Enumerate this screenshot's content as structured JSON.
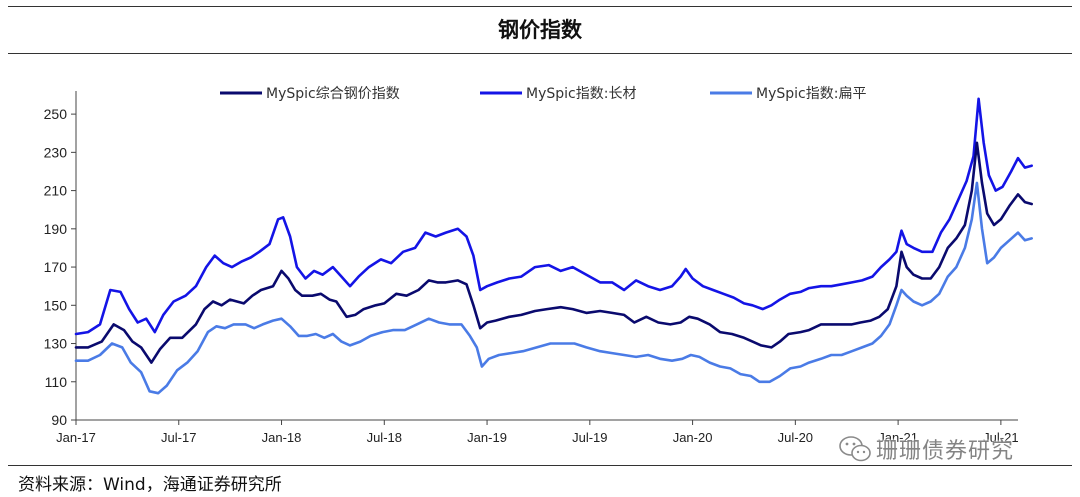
{
  "header": {
    "title": "钢价指数"
  },
  "footer": {
    "source": "资料来源：Wind，海通证券研究所"
  },
  "watermark": {
    "text": "珊珊债券研究",
    "icon": "wechat-icon"
  },
  "chart_data": {
    "type": "line",
    "title": "",
    "xlabel": "",
    "ylabel": "",
    "ylim": [
      90,
      260
    ],
    "yticks": [
      90,
      110,
      130,
      150,
      170,
      190,
      210,
      230,
      250
    ],
    "xlim": [
      0,
      55
    ],
    "xticks": [
      {
        "x": 0,
        "label": "Jan-17"
      },
      {
        "x": 6,
        "label": "Jul-17"
      },
      {
        "x": 12,
        "label": "Jan-18"
      },
      {
        "x": 18,
        "label": "Jul-18"
      },
      {
        "x": 24,
        "label": "Jan-19"
      },
      {
        "x": 30,
        "label": "Jul-19"
      },
      {
        "x": 36,
        "label": "Jan-20"
      },
      {
        "x": 42,
        "label": "Jul-20"
      },
      {
        "x": 48,
        "label": "Jan-21"
      },
      {
        "x": 54,
        "label": "Jul-21"
      }
    ],
    "grid": false,
    "legend_position": "top",
    "series": [
      {
        "name": "MySpic综合钢价指数",
        "color": "#0a0a6e",
        "points": [
          [
            0,
            128
          ],
          [
            0.7,
            128
          ],
          [
            1.5,
            131
          ],
          [
            2.2,
            140
          ],
          [
            2.8,
            137
          ],
          [
            3.3,
            131
          ],
          [
            3.8,
            128
          ],
          [
            4.4,
            120
          ],
          [
            4.9,
            127
          ],
          [
            5.5,
            133
          ],
          [
            6.2,
            133
          ],
          [
            7,
            140
          ],
          [
            7.5,
            148
          ],
          [
            8,
            152
          ],
          [
            8.5,
            150
          ],
          [
            9,
            153
          ],
          [
            9.8,
            151
          ],
          [
            10.3,
            155
          ],
          [
            10.8,
            158
          ],
          [
            11.5,
            160
          ],
          [
            12,
            168
          ],
          [
            12.4,
            164
          ],
          [
            12.8,
            158
          ],
          [
            13.2,
            155
          ],
          [
            13.8,
            155
          ],
          [
            14.3,
            156
          ],
          [
            14.8,
            153
          ],
          [
            15.2,
            152
          ],
          [
            15.8,
            144
          ],
          [
            16.3,
            145
          ],
          [
            16.8,
            148
          ],
          [
            17.5,
            150
          ],
          [
            18,
            151
          ],
          [
            18.7,
            156
          ],
          [
            19.3,
            155
          ],
          [
            20,
            158
          ],
          [
            20.6,
            163
          ],
          [
            21.1,
            162
          ],
          [
            21.6,
            162
          ],
          [
            22.3,
            163
          ],
          [
            22.8,
            161
          ],
          [
            23.2,
            150
          ],
          [
            23.6,
            138
          ],
          [
            24,
            141
          ],
          [
            24.5,
            142
          ],
          [
            25.3,
            144
          ],
          [
            26,
            145
          ],
          [
            26.8,
            147
          ],
          [
            27.5,
            148
          ],
          [
            28.3,
            149
          ],
          [
            29,
            148
          ],
          [
            29.8,
            146
          ],
          [
            30.6,
            147
          ],
          [
            31.3,
            146
          ],
          [
            32,
            145
          ],
          [
            32.6,
            141
          ],
          [
            33.3,
            144
          ],
          [
            34,
            141
          ],
          [
            34.7,
            140
          ],
          [
            35.3,
            141
          ],
          [
            35.8,
            144
          ],
          [
            36.3,
            143
          ],
          [
            37,
            140
          ],
          [
            37.6,
            136
          ],
          [
            38.3,
            135
          ],
          [
            39,
            133
          ],
          [
            39.5,
            131
          ],
          [
            40,
            129
          ],
          [
            40.6,
            128
          ],
          [
            41.1,
            131
          ],
          [
            41.6,
            135
          ],
          [
            42.3,
            136
          ],
          [
            42.8,
            137
          ],
          [
            43.5,
            140
          ],
          [
            44.1,
            140
          ],
          [
            44.7,
            140
          ],
          [
            45.3,
            140
          ],
          [
            45.8,
            141
          ],
          [
            46.4,
            142
          ],
          [
            46.9,
            144
          ],
          [
            47.4,
            148
          ],
          [
            47.9,
            160
          ],
          [
            48.2,
            178
          ],
          [
            48.5,
            170
          ],
          [
            48.9,
            166
          ],
          [
            49.4,
            164
          ],
          [
            49.9,
            164
          ],
          [
            50.4,
            170
          ],
          [
            50.9,
            180
          ],
          [
            51.4,
            185
          ],
          [
            51.9,
            192
          ],
          [
            52.3,
            210
          ],
          [
            52.6,
            235
          ],
          [
            52.9,
            214
          ],
          [
            53.2,
            198
          ],
          [
            53.6,
            192
          ],
          [
            54,
            195
          ],
          [
            54.5,
            202
          ],
          [
            55,
            208
          ],
          [
            55.4,
            204
          ],
          [
            55.8,
            203
          ]
        ]
      },
      {
        "name": "MySpic指数:长材",
        "color": "#1414e6",
        "points": [
          [
            0,
            135
          ],
          [
            0.7,
            136
          ],
          [
            1.4,
            140
          ],
          [
            2,
            158
          ],
          [
            2.6,
            157
          ],
          [
            3.1,
            148
          ],
          [
            3.6,
            141
          ],
          [
            4.1,
            143
          ],
          [
            4.6,
            136
          ],
          [
            5.1,
            145
          ],
          [
            5.7,
            152
          ],
          [
            6.4,
            155
          ],
          [
            7,
            160
          ],
          [
            7.6,
            170
          ],
          [
            8.1,
            176
          ],
          [
            8.6,
            172
          ],
          [
            9.1,
            170
          ],
          [
            9.7,
            173
          ],
          [
            10.2,
            175
          ],
          [
            10.7,
            178
          ],
          [
            11.3,
            182
          ],
          [
            11.8,
            195
          ],
          [
            12.1,
            196
          ],
          [
            12.5,
            186
          ],
          [
            12.9,
            170
          ],
          [
            13.4,
            164
          ],
          [
            13.9,
            168
          ],
          [
            14.4,
            166
          ],
          [
            15,
            170
          ],
          [
            15.5,
            165
          ],
          [
            16,
            160
          ],
          [
            16.5,
            165
          ],
          [
            17.1,
            170
          ],
          [
            17.8,
            174
          ],
          [
            18.4,
            172
          ],
          [
            19.1,
            178
          ],
          [
            19.8,
            180
          ],
          [
            20.4,
            188
          ],
          [
            21,
            186
          ],
          [
            21.6,
            188
          ],
          [
            22.3,
            190
          ],
          [
            22.8,
            186
          ],
          [
            23.2,
            176
          ],
          [
            23.6,
            158
          ],
          [
            24,
            160
          ],
          [
            24.6,
            162
          ],
          [
            25.3,
            164
          ],
          [
            26,
            165
          ],
          [
            26.8,
            170
          ],
          [
            27.6,
            171
          ],
          [
            28.3,
            168
          ],
          [
            29,
            170
          ],
          [
            29.8,
            166
          ],
          [
            30.6,
            162
          ],
          [
            31.3,
            162
          ],
          [
            32,
            158
          ],
          [
            32.7,
            163
          ],
          [
            33.4,
            160
          ],
          [
            34.1,
            158
          ],
          [
            34.8,
            160
          ],
          [
            35.3,
            165
          ],
          [
            35.6,
            169
          ],
          [
            36,
            164
          ],
          [
            36.6,
            160
          ],
          [
            37.2,
            158
          ],
          [
            37.8,
            156
          ],
          [
            38.4,
            154
          ],
          [
            39,
            151
          ],
          [
            39.5,
            150
          ],
          [
            40.1,
            148
          ],
          [
            40.6,
            150
          ],
          [
            41.1,
            153
          ],
          [
            41.7,
            156
          ],
          [
            42.3,
            157
          ],
          [
            42.8,
            159
          ],
          [
            43.5,
            160
          ],
          [
            44.1,
            160
          ],
          [
            44.7,
            161
          ],
          [
            45.3,
            162
          ],
          [
            45.9,
            163
          ],
          [
            46.5,
            165
          ],
          [
            47,
            170
          ],
          [
            47.5,
            174
          ],
          [
            47.9,
            178
          ],
          [
            48.2,
            189
          ],
          [
            48.5,
            182
          ],
          [
            48.9,
            180
          ],
          [
            49.4,
            178
          ],
          [
            50,
            178
          ],
          [
            50.5,
            188
          ],
          [
            51,
            195
          ],
          [
            51.5,
            205
          ],
          [
            52,
            215
          ],
          [
            52.4,
            228
          ],
          [
            52.7,
            258
          ],
          [
            53,
            235
          ],
          [
            53.3,
            218
          ],
          [
            53.7,
            210
          ],
          [
            54.1,
            212
          ],
          [
            54.6,
            220
          ],
          [
            55,
            227
          ],
          [
            55.4,
            222
          ],
          [
            55.8,
            223
          ]
        ]
      },
      {
        "name": "MySpic指数:扁平",
        "color": "#4a7be6",
        "points": [
          [
            0,
            121
          ],
          [
            0.7,
            121
          ],
          [
            1.4,
            124
          ],
          [
            2.1,
            130
          ],
          [
            2.7,
            128
          ],
          [
            3.2,
            120
          ],
          [
            3.8,
            115
          ],
          [
            4.3,
            105
          ],
          [
            4.8,
            104
          ],
          [
            5.3,
            108
          ],
          [
            5.9,
            116
          ],
          [
            6.5,
            120
          ],
          [
            7.1,
            126
          ],
          [
            7.7,
            136
          ],
          [
            8.2,
            139
          ],
          [
            8.7,
            138
          ],
          [
            9.2,
            140
          ],
          [
            9.9,
            140
          ],
          [
            10.4,
            138
          ],
          [
            10.9,
            140
          ],
          [
            11.5,
            142
          ],
          [
            12,
            143
          ],
          [
            12.5,
            139
          ],
          [
            13,
            134
          ],
          [
            13.5,
            134
          ],
          [
            14,
            135
          ],
          [
            14.5,
            133
          ],
          [
            15,
            135
          ],
          [
            15.5,
            131
          ],
          [
            16,
            129
          ],
          [
            16.6,
            131
          ],
          [
            17.2,
            134
          ],
          [
            17.9,
            136
          ],
          [
            18.5,
            137
          ],
          [
            19.2,
            137
          ],
          [
            19.9,
            140
          ],
          [
            20.6,
            143
          ],
          [
            21.2,
            141
          ],
          [
            21.8,
            140
          ],
          [
            22.5,
            140
          ],
          [
            23,
            134
          ],
          [
            23.4,
            128
          ],
          [
            23.7,
            118
          ],
          [
            24.1,
            122
          ],
          [
            24.7,
            124
          ],
          [
            25.4,
            125
          ],
          [
            26.1,
            126
          ],
          [
            26.9,
            128
          ],
          [
            27.7,
            130
          ],
          [
            28.4,
            130
          ],
          [
            29.1,
            130
          ],
          [
            29.8,
            128
          ],
          [
            30.6,
            126
          ],
          [
            31.3,
            125
          ],
          [
            32,
            124
          ],
          [
            32.7,
            123
          ],
          [
            33.4,
            124
          ],
          [
            34.1,
            122
          ],
          [
            34.8,
            121
          ],
          [
            35.4,
            122
          ],
          [
            35.9,
            124
          ],
          [
            36.4,
            123
          ],
          [
            37,
            120
          ],
          [
            37.6,
            118
          ],
          [
            38.2,
            117
          ],
          [
            38.8,
            114
          ],
          [
            39.4,
            113
          ],
          [
            39.9,
            110
          ],
          [
            40.5,
            110
          ],
          [
            41.1,
            113
          ],
          [
            41.7,
            117
          ],
          [
            42.3,
            118
          ],
          [
            42.8,
            120
          ],
          [
            43.5,
            122
          ],
          [
            44.1,
            124
          ],
          [
            44.7,
            124
          ],
          [
            45.3,
            126
          ],
          [
            45.9,
            128
          ],
          [
            46.5,
            130
          ],
          [
            47,
            134
          ],
          [
            47.5,
            140
          ],
          [
            47.9,
            150
          ],
          [
            48.2,
            158
          ],
          [
            48.5,
            155
          ],
          [
            48.9,
            152
          ],
          [
            49.4,
            150
          ],
          [
            49.9,
            152
          ],
          [
            50.4,
            156
          ],
          [
            50.9,
            165
          ],
          [
            51.4,
            170
          ],
          [
            51.9,
            180
          ],
          [
            52.3,
            195
          ],
          [
            52.6,
            214
          ],
          [
            52.9,
            190
          ],
          [
            53.2,
            172
          ],
          [
            53.6,
            175
          ],
          [
            54,
            180
          ],
          [
            54.5,
            184
          ],
          [
            55,
            188
          ],
          [
            55.4,
            184
          ],
          [
            55.8,
            185
          ]
        ]
      }
    ]
  }
}
